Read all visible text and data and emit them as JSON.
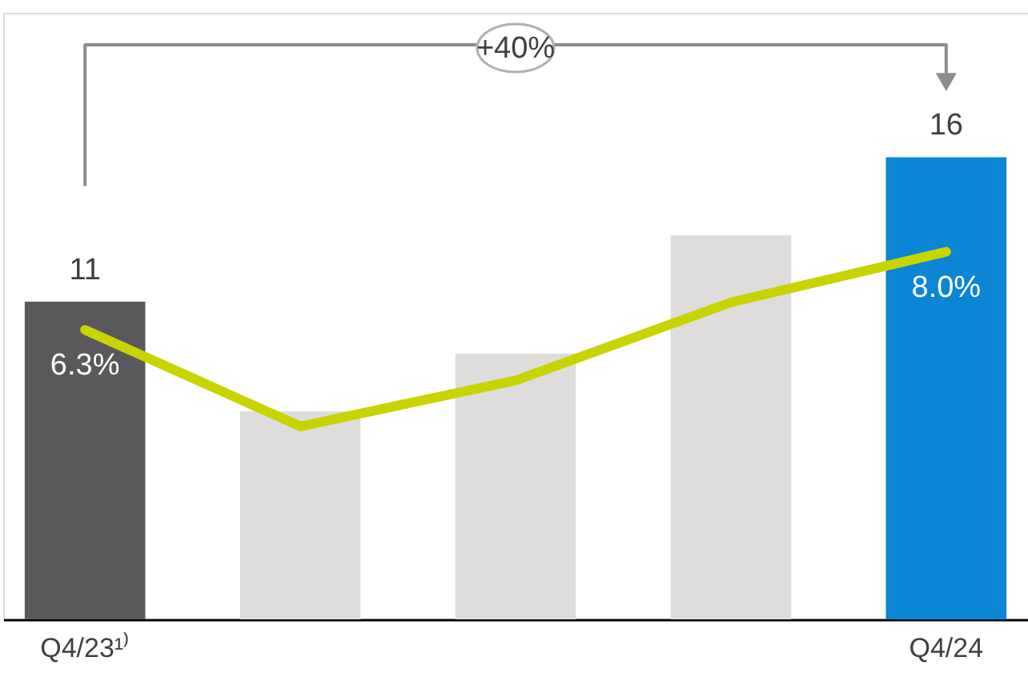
{
  "chart_data": {
    "type": "bar",
    "categories": [
      "Q4/23¹⁾",
      null,
      null,
      null,
      "Q4/24"
    ],
    "ylim": [
      0,
      21.0
    ],
    "y2lim": [
      0,
      13.2
    ],
    "grid": false,
    "tick_labels": "x",
    "series": [
      {
        "colors": [
          "#5a585b",
          "#dedddc",
          "#dedddc",
          "#dedddc",
          "#0a86d4"
        ],
        "values": [
          11,
          7.2,
          9.2,
          13.3,
          16
        ],
        "value_labels": [
          "11",
          null,
          null,
          null,
          "16"
        ]
      },
      {
        "type": "line",
        "axis": "y2",
        "color": "#c8d400",
        "values": [
          6.3,
          4.2,
          5.2,
          6.9,
          8.0
        ],
        "value_labels": [
          "6.3%",
          null,
          null,
          null,
          "8.0%"
        ]
      }
    ],
    "annotations": [
      "+40%"
    ]
  }
}
